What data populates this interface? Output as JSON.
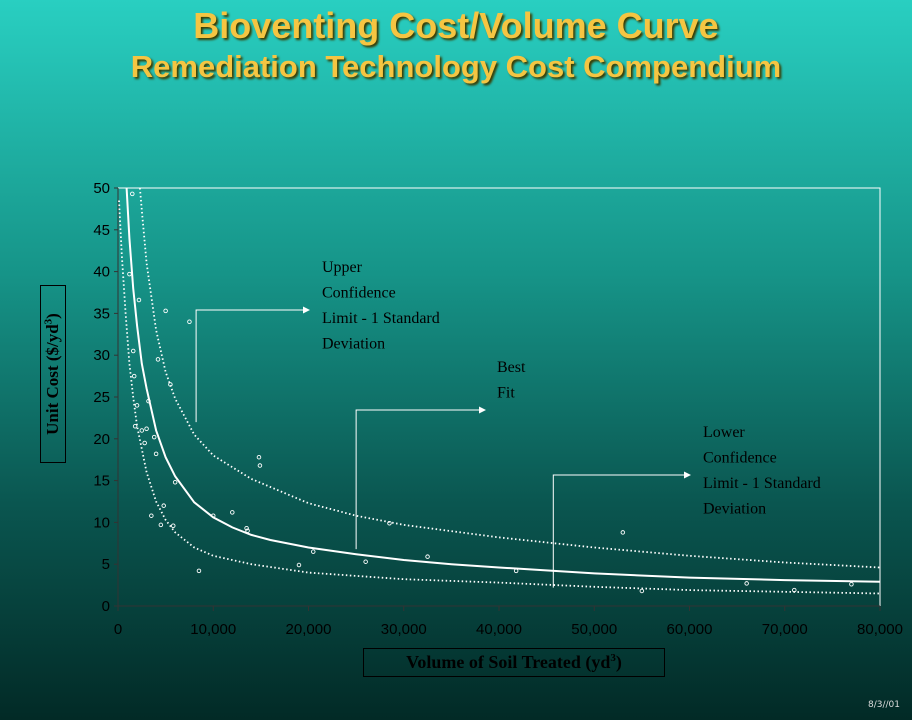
{
  "title": {
    "main": "Bioventing Cost/Volume Curve",
    "subtitle": "Remediation Technology Cost Compendium"
  },
  "footer": {
    "date": "8/3//01"
  },
  "chart_data": {
    "type": "scatter",
    "xlabel": "Volume of Soil Treated (yd",
    "xlabel_sup": "3",
    "xlabel_end": ")",
    "ylabel": "Unit Cost ($/yd",
    "ylabel_sup": "3",
    "ylabel_end": ")",
    "xlim": [
      0,
      80000
    ],
    "ylim": [
      0,
      50
    ],
    "x_ticks": [
      0,
      10000,
      20000,
      30000,
      40000,
      50000,
      60000,
      70000,
      80000
    ],
    "x_tick_labels": [
      "0",
      "10,000",
      "20,000",
      "30,000",
      "40,000",
      "50,000",
      "60,000",
      "70,000",
      "80,000"
    ],
    "y_ticks": [
      0,
      5,
      10,
      15,
      20,
      25,
      30,
      35,
      40,
      45,
      50
    ],
    "y_tick_labels": [
      "0",
      "5",
      "10",
      "15",
      "20",
      "25",
      "30",
      "35",
      "40",
      "45",
      "50"
    ],
    "grid": false,
    "series": [
      {
        "role": "points",
        "x": [
          1200,
          1500,
          1600,
          1700,
          1800,
          2000,
          2200,
          2500,
          2800,
          3000,
          3200,
          3500,
          3800,
          4000,
          4200,
          4500,
          4800,
          5000,
          5500,
          5800,
          6000,
          7500,
          8500,
          10000,
          12000,
          13500,
          13600,
          14800,
          14900,
          19000,
          20500,
          26000,
          28500,
          32500,
          41800,
          53000,
          55000,
          66000,
          71000,
          77000
        ],
        "y": [
          39.7,
          49.3,
          30.5,
          27.5,
          21.5,
          24,
          36.6,
          21,
          19.5,
          21.2,
          24.5,
          10.8,
          20.2,
          18.2,
          29.5,
          9.7,
          12,
          35.3,
          26.5,
          9.6,
          14.8,
          34,
          4.2,
          10.8,
          11.2,
          9.3,
          9.0,
          17.8,
          16.8,
          4.9,
          6.5,
          5.3,
          9.9,
          5.9,
          4.2,
          8.8,
          1.8,
          2.7,
          1.9,
          2.6
        ]
      },
      {
        "name": "Best Fit",
        "role": "best-fit",
        "x": [
          900,
          1200,
          1600,
          2000,
          2500,
          3000,
          4000,
          5000,
          6000,
          8000,
          10000,
          12000,
          14000,
          16000,
          20000,
          25000,
          30000,
          35000,
          40000,
          50000,
          60000,
          70000,
          80000
        ],
        "y": [
          50,
          44,
          38,
          33.5,
          29,
          26,
          21,
          17.8,
          15.5,
          12.4,
          10.6,
          9.4,
          8.5,
          7.9,
          7.0,
          6.2,
          5.5,
          5.0,
          4.6,
          3.9,
          3.4,
          3.1,
          2.9
        ]
      },
      {
        "name": "Upper Confidence Limit - 1 Standard Deviation",
        "role": "upper",
        "x": [
          2300,
          2600,
          3000,
          4000,
          5000,
          6000,
          8000,
          10000,
          14000,
          20000,
          25000,
          30000,
          40000,
          50000,
          60000,
          70000,
          80000
        ],
        "y": [
          50,
          46,
          41,
          33,
          28,
          24.8,
          20.5,
          18,
          15.2,
          12.3,
          10.8,
          9.7,
          8.2,
          7.0,
          6.0,
          5.2,
          4.6
        ]
      },
      {
        "name": "Lower Confidence Limit - 1 Standard Deviation",
        "role": "lower",
        "x": [
          100,
          400,
          800,
          1200,
          1600,
          2000,
          3000,
          4000,
          5000,
          6000,
          8000,
          10000,
          14000,
          20000,
          30000,
          40000,
          50000,
          60000,
          70000,
          80000
        ],
        "y": [
          48.5,
          42,
          35,
          29,
          25,
          21.5,
          16,
          12.5,
          10.3,
          8.8,
          7.0,
          6.0,
          5.0,
          4.0,
          3.2,
          2.8,
          2.3,
          1.9,
          1.7,
          1.5
        ]
      }
    ],
    "annotations": [
      {
        "lines": [
          "Upper",
          "Confidence",
          "Limit - 1 Standard",
          "Deviation"
        ],
        "anchor": {
          "x": 8200,
          "y": 22
        }
      },
      {
        "lines": [
          "Best",
          "Fit"
        ],
        "anchor": {
          "x": 25000,
          "y": 6.8
        }
      },
      {
        "lines": [
          "Lower",
          "Confidence",
          "Limit - 1 Standard",
          "Deviation"
        ],
        "anchor": {
          "x": 45700,
          "y": 2.2
        }
      }
    ]
  }
}
